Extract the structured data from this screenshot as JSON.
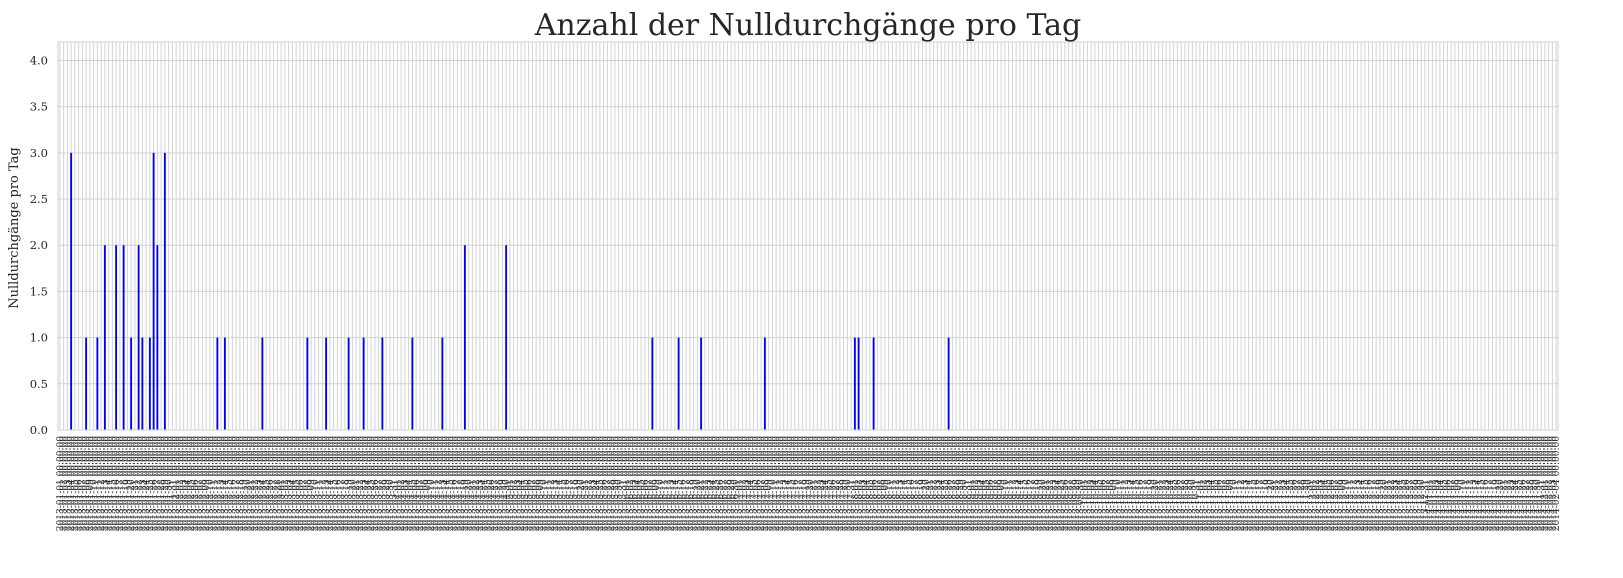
{
  "chart_data": {
    "type": "bar",
    "title": "Anzahl der Nulldurchgänge pro Tag",
    "xlabel": "",
    "ylabel": "Nulldurchgänge pro Tag",
    "ylim": [
      0,
      4.2
    ],
    "yticks": [
      "0.0",
      "0.5",
      "1.0",
      "1.5",
      "2.0",
      "2.5",
      "3.0",
      "3.5",
      "4.0"
    ],
    "grid": true,
    "bar_color": "#0000ff",
    "x_start": "2013-01-01",
    "x_tick_format": "YYYY-MM-DD 00:00:00",
    "values": [
      0,
      0,
      0,
      3,
      0,
      0,
      0,
      1,
      0,
      0,
      1,
      0,
      2,
      0,
      0,
      2,
      0,
      2,
      0,
      1,
      0,
      2,
      1,
      0,
      1,
      3,
      2,
      0,
      3,
      0,
      0,
      0,
      0,
      0,
      0,
      0,
      0,
      0,
      0,
      0,
      0,
      0,
      1,
      0,
      1,
      0,
      0,
      0,
      0,
      0,
      0,
      0,
      0,
      0,
      1,
      0,
      0,
      0,
      0,
      0,
      0,
      0,
      0,
      0,
      0,
      0,
      1,
      0,
      0,
      0,
      0,
      1,
      0,
      0,
      0,
      0,
      0,
      1,
      0,
      0,
      0,
      1,
      0,
      0,
      0,
      0,
      1,
      0,
      0,
      0,
      0,
      0,
      0,
      0,
      1,
      0,
      0,
      0,
      0,
      0,
      0,
      0,
      1,
      0,
      0,
      0,
      0,
      0,
      2,
      0,
      0,
      0,
      0,
      0,
      0,
      0,
      0,
      0,
      0,
      2,
      0,
      0,
      0,
      0,
      0,
      0,
      0,
      0,
      0,
      0,
      0,
      0,
      0,
      0,
      0,
      0,
      0,
      0,
      0,
      0,
      0,
      0,
      0,
      0,
      0,
      0,
      0,
      0,
      0,
      0,
      0,
      0,
      0,
      0,
      0,
      0,
      0,
      0,
      1,
      0,
      0,
      0,
      0,
      0,
      0,
      1,
      0,
      0,
      0,
      0,
      0,
      1,
      0,
      0,
      0,
      0,
      0,
      0,
      0,
      0,
      0,
      0,
      0,
      0,
      0,
      0,
      0,
      0,
      1,
      0,
      0,
      0,
      0,
      0,
      0,
      0,
      0,
      0,
      0,
      0,
      0,
      0,
      0,
      0,
      0,
      0,
      0,
      0,
      0,
      0,
      0,
      0,
      1,
      1,
      0,
      0,
      0,
      1,
      0,
      0,
      0,
      0,
      0,
      0,
      0,
      0,
      0,
      0,
      0,
      0,
      0,
      0,
      0,
      0,
      0,
      0,
      0,
      1,
      0,
      0,
      0,
      0,
      0,
      0,
      0,
      0,
      0,
      0,
      0,
      0,
      0,
      0,
      0,
      0,
      0,
      0,
      0,
      0,
      0,
      0,
      0,
      0,
      0,
      0,
      0,
      0,
      0,
      0,
      0,
      0,
      0,
      0,
      0,
      0,
      0,
      0,
      0,
      0,
      0,
      0,
      0,
      0,
      0,
      0,
      0,
      0,
      0,
      0,
      0,
      0,
      0,
      0,
      0,
      0,
      0,
      0,
      0,
      0,
      0,
      0,
      0,
      0,
      0,
      0,
      0,
      0,
      0,
      0,
      0,
      0,
      0,
      0,
      0,
      0,
      0,
      0,
      0,
      0,
      0,
      0,
      0,
      0,
      0,
      0,
      0,
      0,
      0,
      0,
      0,
      0,
      0,
      0,
      0,
      0,
      0,
      0,
      0,
      0,
      0,
      0,
      0,
      0,
      0,
      0,
      0,
      0,
      0,
      0,
      0,
      0,
      0,
      0,
      0,
      0,
      0,
      0,
      0,
      0,
      0,
      0,
      0,
      0,
      0,
      0,
      0,
      0,
      0,
      0,
      0,
      0,
      0,
      0,
      0,
      0,
      0,
      0,
      0,
      0,
      0,
      0,
      0,
      0,
      0,
      0,
      0,
      0,
      0,
      0,
      0,
      0,
      0,
      0,
      0,
      0,
      0,
      0,
      0,
      0,
      0,
      0
    ]
  }
}
